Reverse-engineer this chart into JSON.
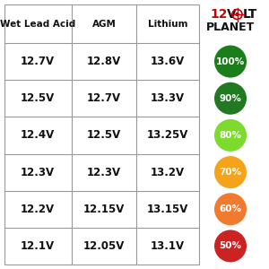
{
  "headers": [
    "Wet Lead Acid",
    "AGM",
    "Lithium"
  ],
  "rows": [
    [
      "12.7V",
      "12.8V",
      "13.6V",
      "100%"
    ],
    [
      "12.5V",
      "12.7V",
      "13.3V",
      "90%"
    ],
    [
      "12.4V",
      "12.5V",
      "13.25V",
      "80%"
    ],
    [
      "12.3V",
      "12.3V",
      "13.2V",
      "70%"
    ],
    [
      "12.2V",
      "12.15V",
      "13.15V",
      "60%"
    ],
    [
      "12.1V",
      "12.05V",
      "13.1V",
      "50%"
    ]
  ],
  "circle_colors": [
    "#1a7e1a",
    "#217921",
    "#7ddb2e",
    "#f5a31a",
    "#f07b2e",
    "#cc2222"
  ],
  "bg_color": "#ffffff",
  "grid_color": "#999999",
  "text_color": "#111111",
  "logo_12_color": "#cc0000",
  "logo_text_color": "#111111",
  "figsize": [
    3.0,
    3.0
  ],
  "dpi": 100
}
